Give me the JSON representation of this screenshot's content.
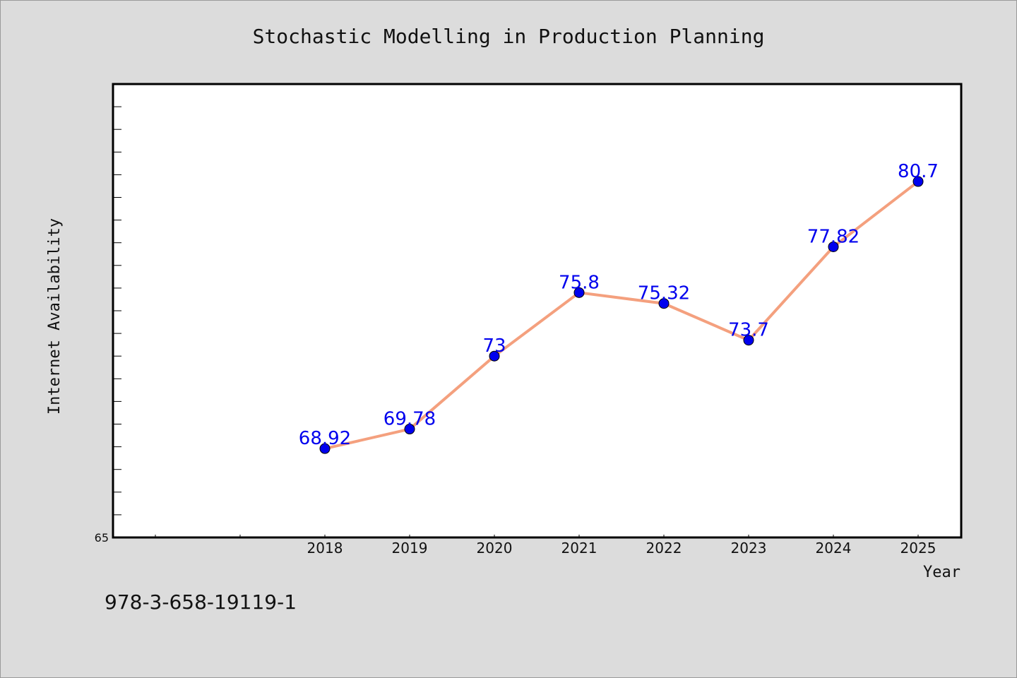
{
  "chart_data": {
    "type": "line",
    "title": "Stochastic Modelling in Production Planning",
    "xlabel": "Year",
    "ylabel": "Internet Availability",
    "categories": [
      "2018",
      "2019",
      "2020",
      "2021",
      "2022",
      "2023",
      "2024",
      "2025"
    ],
    "series": [
      {
        "values": [
          68.92,
          69.78,
          73,
          75.8,
          75.32,
          73.7,
          77.82,
          80.7
        ],
        "labels": [
          "68.92",
          "69.78",
          "73",
          "75.8",
          "75.32",
          "73.7",
          "77.82",
          "80.7"
        ]
      }
    ],
    "ylim": [
      65,
      85
    ],
    "y_tick_labels": [
      "65"
    ],
    "grid": false,
    "line_color": "#f4a07e",
    "marker_color": "#0000ee",
    "label_color": "#0000ee",
    "plot_background": "#ffffff",
    "page_background": "#dcdcdc"
  },
  "footer": {
    "isbn": "978-3-658-19119-1"
  }
}
